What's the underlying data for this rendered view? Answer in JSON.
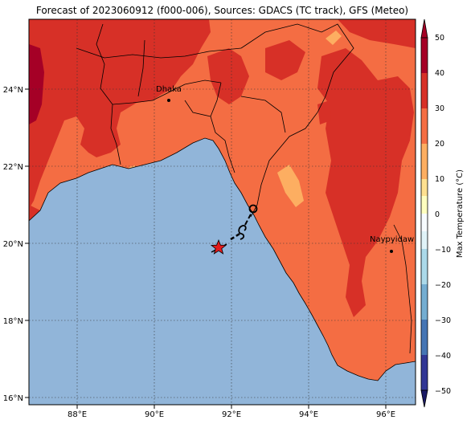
{
  "title": "Forecast of 2023060912 (f000-006), Sources: GDACS (TC track), GFS (Meteo)",
  "map": {
    "lon_ticks": [
      "88°E",
      "90°E",
      "92°E",
      "94°E",
      "96°E"
    ],
    "lat_ticks": [
      "24°N",
      "22°N",
      "20°N",
      "18°N",
      "16°N"
    ],
    "lon_range": [
      86.8,
      96.8
    ],
    "lat_range": [
      15.8,
      25.8
    ],
    "gridlines": true
  },
  "cities": [
    {
      "name": "Dhaka",
      "lon": 90.4,
      "lat": 23.7
    },
    {
      "name": "Naypyidaw",
      "lon": 96.2,
      "lat": 19.8
    }
  ],
  "track": {
    "start_marker": "red-star",
    "storm_symbol": "tropical-cyclone-icon",
    "end_marker": "open-circle"
  },
  "colorbar": {
    "label": "Max Temperature (°C)",
    "ticks": [
      "50",
      "40",
      "30",
      "20",
      "10",
      "0",
      "−10",
      "−20",
      "−30",
      "−40",
      "−50"
    ],
    "colors": {
      "c50": "#a50026",
      "c40": "#d73027",
      "c30": "#f46d43",
      "c20": "#fdae61",
      "c10": "#fee090",
      "c0": "#ffffbf",
      "cm10": "#e0f3f8",
      "cm20": "#abd9e9",
      "cm30": "#74add1",
      "cm40": "#4575b4",
      "cm50": "#313695"
    }
  },
  "colors": {
    "sea": "#91b5d9",
    "land_hot": "#d73027",
    "land_warm": "#f46d43",
    "land_mild": "#fdae61",
    "land_darkest": "#a50026"
  }
}
